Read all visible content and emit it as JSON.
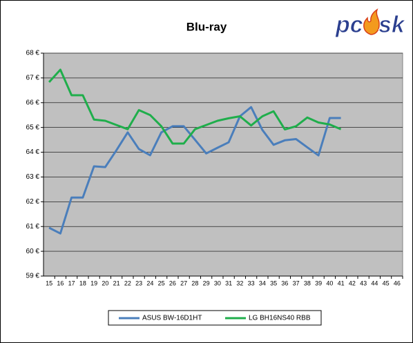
{
  "logo": [
    "pc",
    "sk"
  ],
  "chart_data": {
    "type": "line",
    "title": "Blu-ray",
    "categories": [
      15,
      16,
      17,
      18,
      19,
      20,
      21,
      22,
      23,
      24,
      25,
      26,
      27,
      28,
      29,
      30,
      31,
      32,
      33,
      34,
      35,
      36,
      37,
      38,
      39,
      40,
      41,
      42,
      43,
      44,
      45,
      46
    ],
    "series": [
      {
        "name": "ASUS BW-16D1HT",
        "color": "#4a7ebb",
        "values": [
          60.95,
          60.72,
          62.17,
          62.17,
          63.43,
          63.4,
          64.08,
          64.8,
          64.13,
          63.88,
          64.8,
          65.05,
          65.05,
          64.5,
          63.95,
          64.18,
          64.4,
          65.45,
          65.82,
          64.9,
          64.3,
          64.48,
          64.53,
          64.2,
          63.87,
          65.38,
          65.38,
          null,
          null,
          null,
          null,
          null
        ]
      },
      {
        "name": "LG BH16NS40 RBB",
        "color": "#1fae4b",
        "values": [
          66.83,
          67.33,
          66.3,
          66.3,
          65.32,
          65.27,
          65.1,
          64.93,
          65.7,
          65.5,
          65.05,
          64.35,
          64.35,
          64.93,
          65.1,
          65.27,
          65.37,
          65.45,
          65.08,
          65.45,
          65.65,
          64.92,
          65.05,
          65.4,
          65.2,
          65.12,
          64.93,
          null,
          null,
          null,
          null,
          null
        ]
      }
    ],
    "ylim": [
      59,
      68
    ],
    "yticks": [
      {
        "value": 59,
        "label": "59 €"
      },
      {
        "value": 60,
        "label": "60 €"
      },
      {
        "value": 61,
        "label": "61 €"
      },
      {
        "value": 62,
        "label": "62 €"
      },
      {
        "value": 63,
        "label": "63 €"
      },
      {
        "value": 64,
        "label": "64 €"
      },
      {
        "value": 65,
        "label": "65 €"
      },
      {
        "value": 66,
        "label": "66 €"
      },
      {
        "value": 67,
        "label": "67 €"
      },
      {
        "value": 68,
        "label": "68 €"
      }
    ],
    "grid": true,
    "legend": "bottom"
  }
}
